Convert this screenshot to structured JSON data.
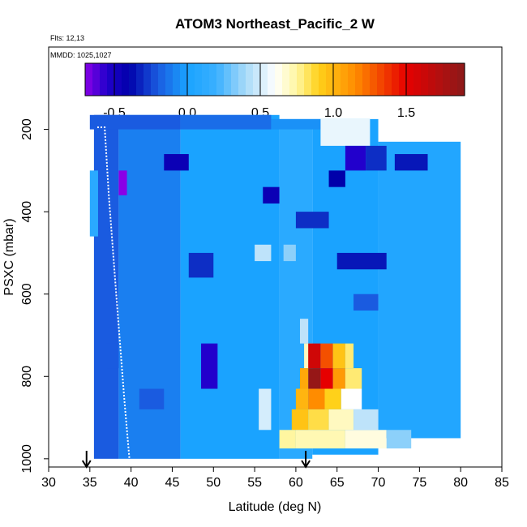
{
  "chart_data": {
    "type": "heatmap",
    "title": "ATOM3 Northeast_Pacific_2 W",
    "flights_label": "Flts: 12,13",
    "mmdd_label": "MMDD: 1025,1027",
    "xlabel": "Latitude (deg N)",
    "ylabel": "PSXC (mbar)",
    "xlim": [
      30,
      85
    ],
    "ylim": [
      1020,
      0
    ],
    "x_ticks": [
      30,
      35,
      40,
      45,
      50,
      55,
      60,
      65,
      70,
      75,
      80,
      85
    ],
    "y_ticks": [
      200,
      400,
      600,
      800,
      1000
    ],
    "colorbar": {
      "range": [
        -0.7,
        1.9
      ],
      "ticks": [
        -0.5,
        0.0,
        0.5,
        1.0,
        1.5
      ],
      "tick_labels": [
        "-0.5",
        "0.0",
        "0.5",
        "1.0",
        "1.5"
      ],
      "stops": [
        {
          "v": -0.7,
          "c": "#8a00e6"
        },
        {
          "v": -0.55,
          "c": "#2200cc"
        },
        {
          "v": -0.4,
          "c": "#0000aa"
        },
        {
          "v": -0.2,
          "c": "#1a5be0"
        },
        {
          "v": 0.0,
          "c": "#1aa3ff"
        },
        {
          "v": 0.2,
          "c": "#3ab0ff"
        },
        {
          "v": 0.4,
          "c": "#a8daf8"
        },
        {
          "v": 0.6,
          "c": "#ffffff"
        },
        {
          "v": 0.75,
          "c": "#fff6a0"
        },
        {
          "v": 0.9,
          "c": "#ffd11a"
        },
        {
          "v": 1.15,
          "c": "#ff8c00"
        },
        {
          "v": 1.5,
          "c": "#e60000"
        },
        {
          "v": 1.9,
          "c": "#8b1a1a"
        }
      ]
    },
    "arrows_at_latitude": [
      34.6,
      61.2
    ],
    "rows": [
      {
        "lat0": 35.5,
        "lat1": 38.5,
        "p0": 165,
        "p1": 1000,
        "v": -0.2
      },
      {
        "lat0": 38.5,
        "lat1": 46.0,
        "p0": 165,
        "p1": 1000,
        "v": -0.1
      },
      {
        "lat0": 46.0,
        "lat1": 58.0,
        "p0": 165,
        "p1": 1000,
        "v": 0.0
      },
      {
        "lat0": 58.0,
        "lat1": 62.0,
        "p0": 175,
        "p1": 1000,
        "v": 0.1
      },
      {
        "lat0": 62.0,
        "lat1": 70.0,
        "p0": 175,
        "p1": 990,
        "v": 0.0
      },
      {
        "lat0": 70.0,
        "lat1": 80.0,
        "p0": 230,
        "p1": 950,
        "v": 0.05
      }
    ],
    "cells": [
      {
        "lat0": 35.0,
        "lat1": 46.0,
        "p0": 165,
        "p1": 200,
        "v": -0.2
      },
      {
        "lat0": 46.0,
        "lat1": 57.0,
        "p0": 165,
        "p1": 200,
        "v": -0.15
      },
      {
        "lat0": 57.0,
        "lat1": 63.0,
        "p0": 175,
        "p1": 200,
        "v": -0.05
      },
      {
        "lat0": 63.0,
        "lat1": 69.0,
        "p0": 175,
        "p1": 240,
        "v": 0.55
      },
      {
        "lat0": 66.0,
        "lat1": 68.5,
        "p0": 240,
        "p1": 300,
        "v": -0.55
      },
      {
        "lat0": 68.5,
        "lat1": 71.0,
        "p0": 240,
        "p1": 300,
        "v": -0.3
      },
      {
        "lat0": 64.0,
        "lat1": 66.0,
        "p0": 300,
        "p1": 340,
        "v": -0.4
      },
      {
        "lat0": 72.0,
        "lat1": 76.0,
        "p0": 260,
        "p1": 300,
        "v": -0.35
      },
      {
        "lat0": 44.0,
        "lat1": 47.0,
        "p0": 260,
        "p1": 300,
        "v": -0.45
      },
      {
        "lat0": 38.5,
        "lat1": 39.5,
        "p0": 300,
        "p1": 360,
        "v": -0.7
      },
      {
        "lat0": 56.0,
        "lat1": 58.0,
        "p0": 340,
        "p1": 380,
        "v": -0.45
      },
      {
        "lat0": 55.0,
        "lat1": 57.0,
        "p0": 480,
        "p1": 520,
        "v": 0.45
      },
      {
        "lat0": 58.5,
        "lat1": 60.0,
        "p0": 480,
        "p1": 520,
        "v": 0.35
      },
      {
        "lat0": 47.0,
        "lat1": 50.0,
        "p0": 500,
        "p1": 560,
        "v": -0.3
      },
      {
        "lat0": 65.0,
        "lat1": 71.0,
        "p0": 500,
        "p1": 540,
        "v": -0.35
      },
      {
        "lat0": 60.0,
        "lat1": 64.0,
        "p0": 400,
        "p1": 440,
        "v": -0.3
      },
      {
        "lat0": 67.0,
        "lat1": 70.0,
        "p0": 600,
        "p1": 640,
        "v": -0.2
      },
      {
        "lat0": 60.5,
        "lat1": 61.5,
        "p0": 660,
        "p1": 720,
        "v": 0.45
      },
      {
        "lat0": 61.0,
        "lat1": 62.0,
        "p0": 720,
        "p1": 780,
        "v": 0.7
      },
      {
        "lat0": 61.5,
        "lat1": 63.0,
        "p0": 720,
        "p1": 780,
        "v": 1.6
      },
      {
        "lat0": 63.0,
        "lat1": 64.5,
        "p0": 720,
        "p1": 780,
        "v": 1.3
      },
      {
        "lat0": 64.5,
        "lat1": 66.0,
        "p0": 720,
        "p1": 780,
        "v": 0.95
      },
      {
        "lat0": 66.0,
        "lat1": 67.0,
        "p0": 720,
        "p1": 780,
        "v": 0.8
      },
      {
        "lat0": 61.5,
        "lat1": 63.0,
        "p0": 780,
        "p1": 830,
        "v": 1.85
      },
      {
        "lat0": 63.0,
        "lat1": 64.5,
        "p0": 780,
        "p1": 830,
        "v": 1.5
      },
      {
        "lat0": 64.5,
        "lat1": 66.0,
        "p0": 780,
        "p1": 830,
        "v": 1.1
      },
      {
        "lat0": 66.0,
        "lat1": 68.0,
        "p0": 780,
        "p1": 830,
        "v": 0.8
      },
      {
        "lat0": 60.5,
        "lat1": 61.5,
        "p0": 780,
        "p1": 830,
        "v": 1.05
      },
      {
        "lat0": 60.0,
        "lat1": 61.5,
        "p0": 830,
        "p1": 880,
        "v": 1.0
      },
      {
        "lat0": 61.5,
        "lat1": 63.5,
        "p0": 830,
        "p1": 880,
        "v": 1.15
      },
      {
        "lat0": 63.5,
        "lat1": 65.5,
        "p0": 830,
        "p1": 880,
        "v": 0.9
      },
      {
        "lat0": 65.5,
        "lat1": 68.0,
        "p0": 830,
        "p1": 880,
        "v": 0.6
      },
      {
        "lat0": 59.5,
        "lat1": 61.5,
        "p0": 880,
        "p1": 930,
        "v": 0.95
      },
      {
        "lat0": 61.5,
        "lat1": 64.0,
        "p0": 880,
        "p1": 930,
        "v": 0.85
      },
      {
        "lat0": 64.0,
        "lat1": 67.0,
        "p0": 880,
        "p1": 930,
        "v": 0.7
      },
      {
        "lat0": 67.0,
        "lat1": 70.0,
        "p0": 880,
        "p1": 930,
        "v": 0.45
      },
      {
        "lat0": 58.0,
        "lat1": 60.0,
        "p0": 930,
        "p1": 975,
        "v": 0.75
      },
      {
        "lat0": 60.0,
        "lat1": 66.0,
        "p0": 930,
        "p1": 975,
        "v": 0.72
      },
      {
        "lat0": 66.0,
        "lat1": 71.0,
        "p0": 930,
        "p1": 975,
        "v": 0.65
      },
      {
        "lat0": 71.0,
        "lat1": 74.0,
        "p0": 930,
        "p1": 975,
        "v": 0.35
      },
      {
        "lat0": 48.5,
        "lat1": 50.5,
        "p0": 720,
        "p1": 830,
        "v": -0.55
      },
      {
        "lat0": 41.0,
        "lat1": 44.0,
        "p0": 830,
        "p1": 880,
        "v": -0.2
      },
      {
        "lat0": 55.5,
        "lat1": 57.0,
        "p0": 830,
        "p1": 930,
        "v": 0.5
      },
      {
        "lat0": 37.0,
        "lat1": 38.5,
        "p0": 720,
        "p1": 780,
        "v": -0.2
      },
      {
        "lat0": 35.0,
        "lat1": 36.0,
        "p0": 300,
        "p1": 460,
        "v": 0.1
      }
    ],
    "profiles": [
      {
        "lat": 35.9,
        "p": 195
      },
      {
        "lat": 36.8,
        "p": 195
      },
      {
        "lat": 37.3,
        "p": 360
      },
      {
        "lat": 38.2,
        "p": 600
      },
      {
        "lat": 39.2,
        "p": 860
      },
      {
        "lat": 39.8,
        "p": 1000
      }
    ]
  }
}
